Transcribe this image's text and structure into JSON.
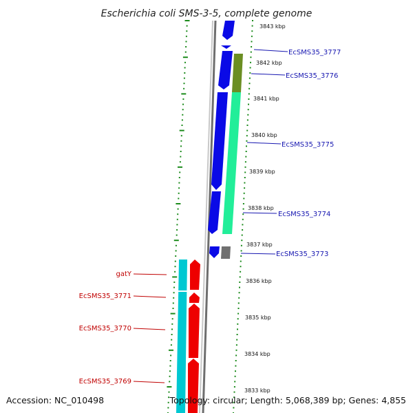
{
  "title": "Escherichia coli SMS-3-5, complete genome",
  "footer": {
    "accession": "Accession: NC_010498",
    "summary": "Topology: circular; Length: 5,068,389 bp; Genes: 4,855"
  },
  "colors": {
    "forward_cds": "#0a0ae6",
    "reverse_cds": "#ee0000",
    "forward_feature_green": "#22ee99",
    "forward_feature_olive": "#6b8e23",
    "forward_feature_gray": "#707070",
    "reverse_feature_cyan": "#00c8d2",
    "blue_label": "#1515b0",
    "red_label": "#c00000",
    "ticks_green": "#1a8a1a"
  },
  "ticks": [
    "3843 kbp",
    "3842 kbp",
    "3841 kbp",
    "3840 kbp",
    "3839 kbp",
    "3838 kbp",
    "3837 kbp",
    "3836 kbp",
    "3835 kbp",
    "3834 kbp",
    "3833 kbp"
  ],
  "forward_labels": [
    "EcSMS35_3777",
    "EcSMS35_3776",
    "EcSMS35_3775",
    "EcSMS35_3774",
    "EcSMS35_3773"
  ],
  "reverse_labels": [
    "gatY",
    "EcSMS35_3771",
    "EcSMS35_3770",
    "EcSMS35_3769"
  ]
}
